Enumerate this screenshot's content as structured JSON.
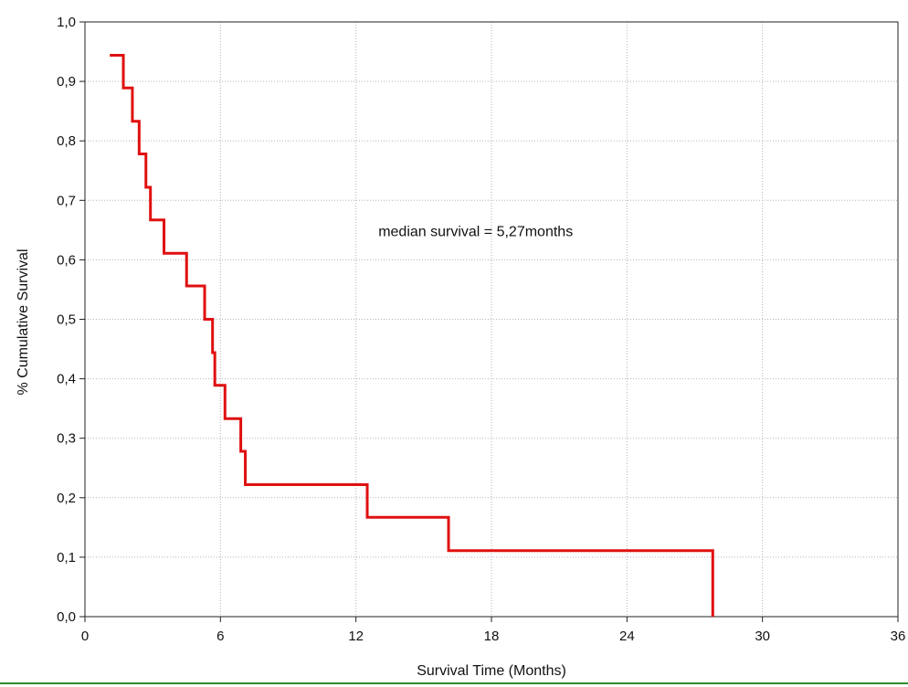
{
  "chart_data": {
    "type": "line",
    "title": "",
    "xlabel": "Survival Time (Months)",
    "ylabel": "% Cumulative Survival",
    "xlim": [
      0,
      36
    ],
    "ylim": [
      0,
      1.0
    ],
    "x_ticks": [
      0,
      6,
      12,
      18,
      24,
      30,
      36
    ],
    "x_tick_labels": [
      "0",
      "6",
      "12",
      "18",
      "24",
      "30",
      "36"
    ],
    "y_ticks": [
      0,
      0.1,
      0.2,
      0.3,
      0.4,
      0.5,
      0.6,
      0.7,
      0.8,
      0.9,
      1.0
    ],
    "y_tick_labels": [
      "0,0",
      "0,1",
      "0,2",
      "0,3",
      "0,4",
      "0,5",
      "0,6",
      "0,7",
      "0,8",
      "0,9",
      "1,0"
    ],
    "grid": true,
    "series": [
      {
        "color": "#e01010",
        "step": true,
        "x": [
          1.1,
          1.7,
          2.1,
          2.4,
          2.7,
          2.9,
          3.5,
          4.5,
          5.3,
          5.65,
          5.75,
          6.2,
          6.9,
          7.1,
          12.5,
          16.1,
          27.8,
          27.8
        ],
        "y": [
          0.944,
          0.889,
          0.833,
          0.778,
          0.722,
          0.667,
          0.611,
          0.556,
          0.5,
          0.444,
          0.389,
          0.333,
          0.278,
          0.222,
          0.167,
          0.111,
          0.111,
          0.0
        ]
      }
    ],
    "annotations": [
      {
        "text": "median survival = 5,27months",
        "x": 17.3,
        "y": 0.64
      }
    ]
  }
}
